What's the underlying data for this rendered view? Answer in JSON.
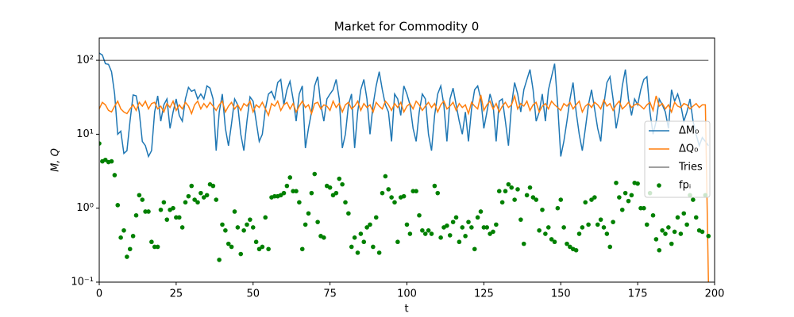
{
  "chart_data": {
    "type": "line",
    "title": "Market for Commodity 0",
    "xlabel": "t",
    "ylabel": "M, Q",
    "xlim": [
      0,
      200
    ],
    "xticks": [
      0,
      25,
      50,
      75,
      100,
      125,
      150,
      175,
      200
    ],
    "ylim": [
      0.1,
      200
    ],
    "ylog": true,
    "yticks": [
      {
        "value": 0.1,
        "label": "10⁻¹"
      },
      {
        "value": 1,
        "label": "10⁰"
      },
      {
        "value": 10,
        "label": "10¹"
      },
      {
        "value": 100,
        "label": "10²"
      }
    ],
    "legend": "right",
    "x": [
      0,
      1,
      2,
      3,
      4,
      5,
      6,
      7,
      8,
      9,
      10,
      11,
      12,
      13,
      14,
      15,
      16,
      17,
      18,
      19,
      20,
      21,
      22,
      23,
      24,
      25,
      26,
      27,
      28,
      29,
      30,
      31,
      32,
      33,
      34,
      35,
      36,
      37,
      38,
      39,
      40,
      41,
      42,
      43,
      44,
      45,
      46,
      47,
      48,
      49,
      50,
      51,
      52,
      53,
      54,
      55,
      56,
      57,
      58,
      59,
      60,
      61,
      62,
      63,
      64,
      65,
      66,
      67,
      68,
      69,
      70,
      71,
      72,
      73,
      74,
      75,
      76,
      77,
      78,
      79,
      80,
      81,
      82,
      83,
      84,
      85,
      86,
      87,
      88,
      89,
      90,
      91,
      92,
      93,
      94,
      95,
      96,
      97,
      98,
      99,
      100,
      101,
      102,
      103,
      104,
      105,
      106,
      107,
      108,
      109,
      110,
      111,
      112,
      113,
      114,
      115,
      116,
      117,
      118,
      119,
      120,
      121,
      122,
      123,
      124,
      125,
      126,
      127,
      128,
      129,
      130,
      131,
      132,
      133,
      134,
      135,
      136,
      137,
      138,
      139,
      140,
      141,
      142,
      143,
      144,
      145,
      146,
      147,
      148,
      149,
      150,
      151,
      152,
      153,
      154,
      155,
      156,
      157,
      158,
      159,
      160,
      161,
      162,
      163,
      164,
      165,
      166,
      167,
      168,
      169,
      170,
      171,
      172,
      173,
      174,
      175,
      176,
      177,
      178,
      179,
      180,
      181,
      182,
      183,
      184,
      185,
      186,
      187,
      188,
      189,
      190,
      191,
      192,
      193,
      194,
      195,
      196,
      197,
      198
    ],
    "series": [
      {
        "name": "ΔM₀",
        "color": "#1f77b4",
        "style": "line",
        "values": [
          125,
          118,
          90,
          88,
          70,
          35,
          10,
          11,
          5.5,
          6,
          15,
          34,
          33,
          20,
          8,
          7,
          5,
          6,
          20,
          33,
          15,
          25,
          30,
          12,
          20,
          30,
          18,
          15,
          30,
          43,
          38,
          40,
          30,
          35,
          30,
          45,
          42,
          30,
          6,
          20,
          35,
          12,
          7,
          14,
          30,
          25,
          10,
          6,
          15,
          32,
          28,
          15,
          8,
          10,
          22,
          35,
          38,
          30,
          50,
          55,
          25,
          40,
          52,
          30,
          15,
          35,
          45,
          6.5,
          12,
          20,
          45,
          60,
          25,
          15,
          30,
          35,
          40,
          55,
          30,
          6.5,
          10,
          25,
          35,
          6.5,
          20,
          40,
          55,
          30,
          10,
          25,
          45,
          70,
          40,
          25,
          20,
          8,
          35,
          30,
          18,
          45,
          35,
          25,
          12,
          8,
          20,
          35,
          30,
          10,
          6,
          18,
          35,
          45,
          25,
          8,
          30,
          42,
          25,
          15,
          10,
          20,
          8,
          22,
          40,
          45,
          30,
          12,
          20,
          35,
          25,
          8,
          28,
          30,
          15,
          7,
          25,
          50,
          35,
          20,
          40,
          55,
          75,
          40,
          15,
          20,
          35,
          15,
          40,
          60,
          90,
          25,
          5,
          8,
          15,
          30,
          50,
          20,
          10,
          6,
          12,
          25,
          40,
          22,
          12,
          8,
          25,
          50,
          60,
          30,
          12,
          20,
          45,
          75,
          30,
          18,
          30,
          25,
          40,
          55,
          60,
          20,
          10,
          15,
          30,
          25,
          20,
          12,
          40,
          28,
          35,
          25,
          15,
          20,
          30,
          15,
          10,
          7,
          9,
          8,
          7
        ]
      },
      {
        "name": "ΔQ₀",
        "color": "#ff7f0e",
        "style": "line",
        "values": [
          22,
          27,
          25,
          21,
          20,
          24,
          28,
          22,
          20,
          19,
          22,
          25,
          21,
          27,
          24,
          28,
          22,
          26,
          27,
          22,
          24,
          20,
          26,
          23,
          28,
          21,
          25,
          22,
          27,
          24,
          19,
          25,
          28,
          22,
          26,
          23,
          27,
          24,
          21,
          25,
          28,
          20,
          24,
          27,
          22,
          25,
          21,
          26,
          24,
          28,
          20,
          25,
          23,
          27,
          22,
          18,
          26,
          24,
          28,
          21,
          25,
          27,
          22,
          26,
          20,
          24,
          28,
          23,
          25,
          19,
          26,
          27,
          22,
          25,
          24,
          21,
          28,
          23,
          26,
          20,
          25,
          27,
          22,
          24,
          28,
          21,
          26,
          23,
          25,
          20,
          27,
          24,
          22,
          28,
          25,
          21,
          26,
          23,
          27,
          20,
          24,
          26,
          22,
          28,
          25,
          21,
          24,
          27,
          23,
          26,
          20,
          25,
          28,
          22,
          24,
          27,
          21,
          26,
          23,
          25,
          19,
          27,
          24,
          22,
          34,
          21,
          25,
          28,
          22,
          26,
          20,
          24,
          27,
          23,
          25,
          33,
          22,
          26,
          24,
          28,
          21,
          25,
          27,
          20,
          24,
          26,
          22,
          28,
          25,
          23,
          21,
          26,
          24,
          27,
          22,
          25,
          28,
          20,
          24,
          26,
          23,
          27,
          25,
          22,
          29,
          24,
          26,
          21,
          25,
          28,
          22,
          24,
          27,
          23,
          25,
          26,
          24,
          22,
          25,
          27,
          21,
          33,
          24,
          26,
          22,
          25,
          20,
          27,
          24,
          23,
          26,
          25,
          22,
          24,
          26,
          23,
          25,
          25,
          0.1
        ]
      },
      {
        "name": "Tries",
        "color": "#000000",
        "style": "thin",
        "x": [
          0,
          198
        ],
        "values": [
          100,
          100
        ]
      },
      {
        "name": "fpᵢ",
        "color": "#008000",
        "style": "markers",
        "values": [
          7.5,
          4.3,
          4.5,
          4.2,
          4.3,
          2.8,
          1.1,
          0.4,
          0.5,
          0.22,
          0.28,
          0.42,
          0.8,
          1.5,
          1.3,
          0.9,
          0.9,
          0.35,
          0.3,
          0.3,
          0.95,
          1.2,
          0.7,
          0.95,
          1.0,
          0.75,
          0.75,
          0.55,
          1.2,
          1.45,
          2.0,
          1.3,
          1.2,
          1.6,
          1.4,
          1.5,
          2.1,
          2.0,
          1.3,
          0.2,
          0.6,
          0.5,
          0.33,
          0.3,
          0.9,
          0.55,
          0.24,
          0.5,
          0.6,
          0.7,
          0.55,
          0.35,
          0.28,
          0.3,
          0.75,
          0.28,
          1.4,
          1.45,
          1.45,
          1.5,
          1.6,
          2.0,
          2.6,
          1.7,
          1.7,
          1.2,
          0.28,
          0.6,
          0.85,
          1.6,
          2.9,
          0.65,
          0.42,
          0.4,
          2.0,
          1.9,
          1.5,
          1.6,
          2.5,
          2.1,
          1.2,
          0.85,
          0.3,
          0.4,
          0.25,
          0.45,
          0.35,
          0.55,
          0.6,
          0.3,
          0.75,
          0.25,
          1.6,
          2.7,
          1.8,
          1.4,
          1.2,
          0.35,
          1.4,
          1.45,
          0.6,
          0.45,
          1.7,
          1.7,
          0.8,
          0.5,
          0.45,
          0.5,
          0.45,
          2.0,
          1.6,
          0.4,
          0.55,
          0.58,
          0.43,
          0.65,
          0.75,
          0.35,
          0.55,
          0.42,
          0.65,
          0.55,
          0.28,
          0.75,
          0.9,
          0.55,
          0.55,
          0.45,
          0.48,
          0.6,
          1.7,
          1.2,
          1.7,
          2.1,
          1.9,
          1.3,
          1.8,
          0.7,
          0.33,
          1.5,
          1.9,
          1.4,
          1.3,
          0.5,
          0.95,
          0.45,
          0.55,
          0.38,
          0.35,
          1.0,
          1.3,
          0.55,
          0.33,
          0.3,
          0.28,
          0.27,
          0.45,
          0.55,
          1.2,
          0.6,
          1.3,
          1.4,
          0.6,
          0.7,
          0.55,
          0.45,
          0.3,
          0.65,
          2.2,
          1.4,
          0.95,
          1.6,
          1.25,
          1.5,
          2.2,
          2.15,
          1.0,
          1.0,
          0.6,
          1.6,
          0.8,
          0.38,
          0.27,
          0.5,
          0.45,
          0.55,
          0.33,
          0.48,
          0.75,
          0.45,
          0.85,
          0.6,
          1.5,
          1.3,
          0.75,
          0.5,
          0.48,
          1.5,
          0.42
        ]
      }
    ]
  }
}
